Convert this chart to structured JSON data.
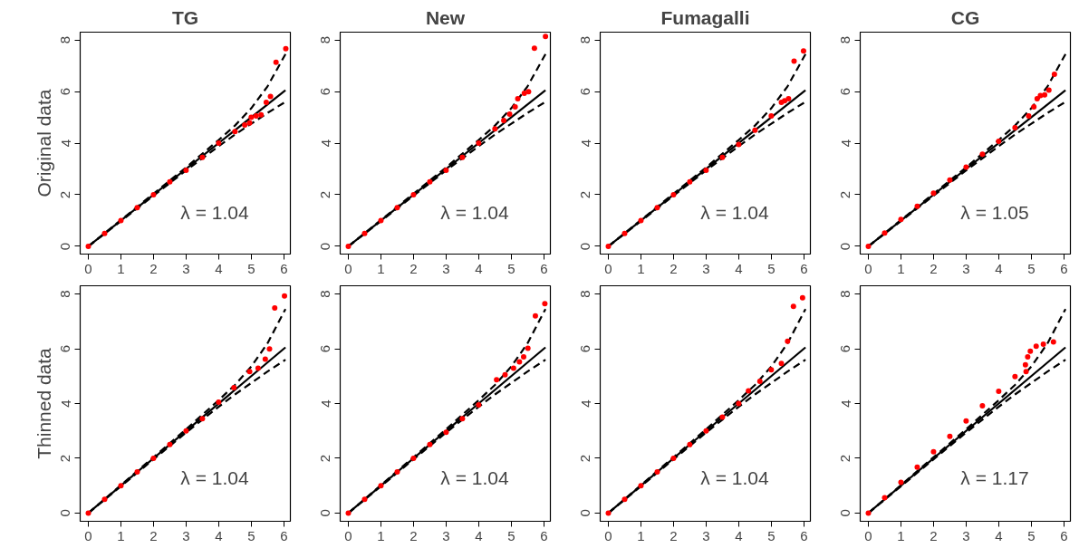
{
  "chart_data": [
    {
      "type": "scatter",
      "title": "TG",
      "ylabel": "Original data",
      "xlim": [
        -0.25,
        6.2
      ],
      "ylim": [
        -0.3,
        8.3
      ],
      "xticks": [
        0,
        1,
        2,
        3,
        4,
        5,
        6
      ],
      "yticks": [
        0,
        2,
        4,
        6,
        8
      ],
      "grid": false,
      "annotations": [
        "λ = 1.04"
      ],
      "series": [
        {
          "marker": "circle",
          "color": "#ff0000",
          "x": [
            0,
            0.5,
            1,
            1.5,
            2,
            2.5,
            3,
            3.5,
            4,
            4.5,
            4.8,
            4.95,
            5.0,
            5.15,
            5.3,
            5.46,
            5.59,
            5.76,
            6.06
          ],
          "values": [
            0,
            0.5,
            1,
            1.5,
            2,
            2.5,
            2.95,
            3.45,
            4.0,
            4.45,
            4.7,
            4.78,
            5.0,
            5.05,
            5.1,
            5.58,
            5.81,
            7.13,
            7.66
          ]
        },
        {
          "type": "line",
          "color": "#000000",
          "line_style": "solid",
          "x": [
            0,
            6.05
          ],
          "values": [
            0,
            6.05
          ]
        },
        {
          "type": "line",
          "color": "#000000",
          "line_style": "dashed",
          "x": [
            0,
            1,
            2,
            3,
            4,
            4.5,
            5,
            5.5,
            6.05
          ],
          "values": [
            0,
            1.02,
            2.04,
            3.06,
            4.12,
            4.68,
            5.35,
            6.2,
            7.45
          ]
        },
        {
          "type": "line",
          "color": "#000000",
          "line_style": "dashed",
          "x": [
            0,
            1,
            2,
            3,
            4,
            4.5,
            5,
            5.5,
            6.05
          ],
          "values": [
            0,
            0.98,
            1.96,
            2.94,
            3.88,
            4.33,
            4.75,
            5.17,
            5.6
          ]
        }
      ]
    },
    {
      "type": "scatter",
      "title": "New",
      "xlim": [
        -0.25,
        6.2
      ],
      "ylim": [
        -0.3,
        8.3
      ],
      "xticks": [
        0,
        1,
        2,
        3,
        4,
        5,
        6
      ],
      "yticks": [
        0,
        2,
        4,
        6,
        8
      ],
      "grid": false,
      "annotations": [
        "λ = 1.04"
      ],
      "series": [
        {
          "marker": "circle",
          "color": "#ff0000",
          "x": [
            0,
            0.5,
            1,
            1.5,
            2,
            2.5,
            3,
            3.5,
            4,
            4.5,
            4.77,
            4.95,
            5.12,
            5.2,
            5.4,
            5.53,
            5.71,
            6.05
          ],
          "values": [
            0,
            0.5,
            1,
            1.5,
            2,
            2.5,
            2.95,
            3.45,
            4.0,
            4.55,
            4.88,
            5.12,
            5.4,
            5.72,
            5.93,
            5.99,
            7.68,
            8.13
          ]
        },
        {
          "type": "line",
          "color": "#000000",
          "line_style": "solid",
          "x": [
            0,
            6.05
          ],
          "values": [
            0,
            6.05
          ]
        },
        {
          "type": "line",
          "color": "#000000",
          "line_style": "dashed",
          "x": [
            0,
            1,
            2,
            3,
            4,
            4.5,
            5,
            5.5,
            6.05
          ],
          "values": [
            0,
            1.02,
            2.04,
            3.06,
            4.12,
            4.68,
            5.35,
            6.2,
            7.45
          ]
        },
        {
          "type": "line",
          "color": "#000000",
          "line_style": "dashed",
          "x": [
            0,
            1,
            2,
            3,
            4,
            4.5,
            5,
            5.5,
            6.05
          ],
          "values": [
            0,
            0.98,
            1.96,
            2.94,
            3.88,
            4.33,
            4.75,
            5.17,
            5.6
          ]
        }
      ]
    },
    {
      "type": "scatter",
      "title": "Fumagalli",
      "xlim": [
        -0.25,
        6.2
      ],
      "ylim": [
        -0.3,
        8.3
      ],
      "xticks": [
        0,
        1,
        2,
        3,
        4,
        5,
        6
      ],
      "yticks": [
        0,
        2,
        4,
        6,
        8
      ],
      "grid": false,
      "annotations": [
        "λ = 1.04"
      ],
      "series": [
        {
          "marker": "circle",
          "color": "#ff0000",
          "x": [
            0,
            0.5,
            1,
            1.5,
            2,
            2.5,
            3,
            3.5,
            4,
            4.5,
            5.0,
            5.31,
            5.41,
            5.53,
            5.7,
            5.99
          ],
          "values": [
            0,
            0.5,
            1,
            1.5,
            2,
            2.5,
            2.95,
            3.45,
            3.95,
            4.5,
            5.05,
            5.58,
            5.64,
            5.72,
            7.18,
            7.57
          ]
        },
        {
          "type": "line",
          "color": "#000000",
          "line_style": "solid",
          "x": [
            0,
            6.05
          ],
          "values": [
            0,
            6.05
          ]
        },
        {
          "type": "line",
          "color": "#000000",
          "line_style": "dashed",
          "x": [
            0,
            1,
            2,
            3,
            4,
            4.5,
            5,
            5.5,
            6.05
          ],
          "values": [
            0,
            1.02,
            2.04,
            3.06,
            4.12,
            4.68,
            5.35,
            6.2,
            7.45
          ]
        },
        {
          "type": "line",
          "color": "#000000",
          "line_style": "dashed",
          "x": [
            0,
            1,
            2,
            3,
            4,
            4.5,
            5,
            5.5,
            6.05
          ],
          "values": [
            0,
            0.98,
            1.96,
            2.94,
            3.88,
            4.33,
            4.75,
            5.17,
            5.6
          ]
        }
      ]
    },
    {
      "type": "scatter",
      "title": "CG",
      "xlim": [
        -0.25,
        6.2
      ],
      "ylim": [
        -0.3,
        8.3
      ],
      "xticks": [
        0,
        1,
        2,
        3,
        4,
        5,
        6
      ],
      "yticks": [
        0,
        2,
        4,
        6,
        8
      ],
      "grid": false,
      "annotations": [
        "λ = 1.05"
      ],
      "series": [
        {
          "marker": "circle",
          "color": "#ff0000",
          "x": [
            0,
            0.5,
            1,
            1.5,
            2,
            2.5,
            3,
            3.5,
            4,
            4.5,
            4.92,
            5.08,
            5.18,
            5.28,
            5.41,
            5.54,
            5.71
          ],
          "values": [
            0,
            0.52,
            1.04,
            1.55,
            2.06,
            2.57,
            3.07,
            3.57,
            4.07,
            4.6,
            5.05,
            5.4,
            5.72,
            5.84,
            5.87,
            6.05,
            6.67
          ]
        },
        {
          "type": "line",
          "color": "#000000",
          "line_style": "solid",
          "x": [
            0,
            6.05
          ],
          "values": [
            0,
            6.05
          ]
        },
        {
          "type": "line",
          "color": "#000000",
          "line_style": "dashed",
          "x": [
            0,
            1,
            2,
            3,
            4,
            4.5,
            5,
            5.5,
            6.05
          ],
          "values": [
            0,
            1.02,
            2.04,
            3.06,
            4.12,
            4.68,
            5.35,
            6.2,
            7.45
          ]
        },
        {
          "type": "line",
          "color": "#000000",
          "line_style": "dashed",
          "x": [
            0,
            1,
            2,
            3,
            4,
            4.5,
            5,
            5.5,
            6.05
          ],
          "values": [
            0,
            0.98,
            1.96,
            2.94,
            3.88,
            4.33,
            4.75,
            5.17,
            5.6
          ]
        }
      ]
    },
    {
      "type": "scatter",
      "ylabel": "Thinned data",
      "xlim": [
        -0.25,
        6.2
      ],
      "ylim": [
        -0.3,
        8.3
      ],
      "xticks": [
        0,
        1,
        2,
        3,
        4,
        5,
        6
      ],
      "yticks": [
        0,
        2,
        4,
        6,
        8
      ],
      "grid": false,
      "annotations": [
        "λ = 1.04"
      ],
      "series": [
        {
          "marker": "circle",
          "color": "#ff0000",
          "x": [
            0,
            0.5,
            1,
            1.5,
            2,
            2.5,
            3,
            3.5,
            4,
            4.47,
            4.95,
            5.21,
            5.43,
            5.56,
            5.72,
            6.02
          ],
          "values": [
            0,
            0.5,
            1,
            1.5,
            2,
            2.5,
            3.0,
            3.45,
            4.05,
            4.58,
            5.17,
            5.29,
            5.62,
            5.99,
            7.49,
            7.93
          ]
        },
        {
          "type": "line",
          "color": "#000000",
          "line_style": "solid",
          "x": [
            0,
            6.05
          ],
          "values": [
            0,
            6.05
          ]
        },
        {
          "type": "line",
          "color": "#000000",
          "line_style": "dashed",
          "x": [
            0,
            1,
            2,
            3,
            4,
            4.5,
            5,
            5.5,
            6.05
          ],
          "values": [
            0,
            1.02,
            2.04,
            3.06,
            4.12,
            4.68,
            5.35,
            6.2,
            7.45
          ]
        },
        {
          "type": "line",
          "color": "#000000",
          "line_style": "dashed",
          "x": [
            0,
            1,
            2,
            3,
            4,
            4.5,
            5,
            5.5,
            6.05
          ],
          "values": [
            0,
            0.98,
            1.96,
            2.94,
            3.88,
            4.33,
            4.75,
            5.17,
            5.6
          ]
        }
      ]
    },
    {
      "type": "scatter",
      "xlim": [
        -0.25,
        6.2
      ],
      "ylim": [
        -0.3,
        8.3
      ],
      "xticks": [
        0,
        1,
        2,
        3,
        4,
        5,
        6
      ],
      "yticks": [
        0,
        2,
        4,
        6,
        8
      ],
      "grid": false,
      "annotations": [
        "λ = 1.04"
      ],
      "series": [
        {
          "marker": "circle",
          "color": "#ff0000",
          "x": [
            0,
            0.5,
            1,
            1.5,
            2,
            2.5,
            3,
            3.5,
            4,
            4.55,
            4.81,
            5.07,
            5.25,
            5.38,
            5.51,
            5.74,
            6.03
          ],
          "values": [
            0,
            0.5,
            1,
            1.5,
            2,
            2.5,
            2.95,
            3.45,
            3.95,
            4.87,
            5.05,
            5.29,
            5.52,
            5.7,
            6.02,
            7.2,
            7.65
          ]
        },
        {
          "type": "line",
          "color": "#000000",
          "line_style": "solid",
          "x": [
            0,
            6.05
          ],
          "values": [
            0,
            6.05
          ]
        },
        {
          "type": "line",
          "color": "#000000",
          "line_style": "dashed",
          "x": [
            0,
            1,
            2,
            3,
            4,
            4.5,
            5,
            5.5,
            6.05
          ],
          "values": [
            0,
            1.02,
            2.04,
            3.06,
            4.12,
            4.68,
            5.35,
            6.2,
            7.45
          ]
        },
        {
          "type": "line",
          "color": "#000000",
          "line_style": "dashed",
          "x": [
            0,
            1,
            2,
            3,
            4,
            4.5,
            5,
            5.5,
            6.05
          ],
          "values": [
            0,
            0.98,
            1.96,
            2.94,
            3.88,
            4.33,
            4.75,
            5.17,
            5.6
          ]
        }
      ]
    },
    {
      "type": "scatter",
      "xlim": [
        -0.25,
        6.2
      ],
      "ylim": [
        -0.3,
        8.3
      ],
      "xticks": [
        0,
        1,
        2,
        3,
        4,
        5,
        6
      ],
      "yticks": [
        0,
        2,
        4,
        6,
        8
      ],
      "grid": false,
      "annotations": [
        "λ = 1.04"
      ],
      "series": [
        {
          "marker": "circle",
          "color": "#ff0000",
          "x": [
            0,
            0.5,
            1,
            1.5,
            2,
            2.5,
            3,
            3.5,
            4,
            4.3,
            4.65,
            5.0,
            5.31,
            5.5,
            5.68,
            5.96
          ],
          "values": [
            0,
            0.5,
            1,
            1.5,
            2,
            2.5,
            3.0,
            3.5,
            4.0,
            4.46,
            4.81,
            5.23,
            5.46,
            6.27,
            7.55,
            7.86
          ]
        },
        {
          "type": "line",
          "color": "#000000",
          "line_style": "solid",
          "x": [
            0,
            6.05
          ],
          "values": [
            0,
            6.05
          ]
        },
        {
          "type": "line",
          "color": "#000000",
          "line_style": "dashed",
          "x": [
            0,
            1,
            2,
            3,
            4,
            4.5,
            5,
            5.5,
            6.05
          ],
          "values": [
            0,
            1.02,
            2.04,
            3.06,
            4.12,
            4.68,
            5.35,
            6.2,
            7.45
          ]
        },
        {
          "type": "line",
          "color": "#000000",
          "line_style": "dashed",
          "x": [
            0,
            1,
            2,
            3,
            4,
            4.5,
            5,
            5.5,
            6.05
          ],
          "values": [
            0,
            0.98,
            1.96,
            2.94,
            3.88,
            4.33,
            4.75,
            5.17,
            5.6
          ]
        }
      ]
    },
    {
      "type": "scatter",
      "xlim": [
        -0.25,
        6.2
      ],
      "ylim": [
        -0.3,
        8.3
      ],
      "xticks": [
        0,
        1,
        2,
        3,
        4,
        5,
        6
      ],
      "yticks": [
        0,
        2,
        4,
        6,
        8
      ],
      "grid": false,
      "annotations": [
        "λ = 1.17"
      ],
      "series": [
        {
          "marker": "circle",
          "color": "#ff0000",
          "x": [
            0,
            0.5,
            1,
            1.5,
            2,
            2.5,
            3,
            3.5,
            4,
            4.5,
            4.84,
            4.82,
            4.89,
            4.97,
            5.15,
            5.37,
            5.68
          ],
          "values": [
            0,
            0.56,
            1.12,
            1.68,
            2.24,
            2.8,
            3.36,
            3.92,
            4.45,
            4.98,
            5.17,
            5.41,
            5.7,
            5.91,
            6.09,
            6.17,
            6.25
          ]
        },
        {
          "type": "line",
          "color": "#000000",
          "line_style": "solid",
          "x": [
            0,
            6.05
          ],
          "values": [
            0,
            6.05
          ]
        },
        {
          "type": "line",
          "color": "#000000",
          "line_style": "dashed",
          "x": [
            0,
            1,
            2,
            3,
            4,
            4.5,
            5,
            5.5,
            6.05
          ],
          "values": [
            0,
            1.02,
            2.04,
            3.06,
            4.12,
            4.68,
            5.35,
            6.2,
            7.45
          ]
        },
        {
          "type": "line",
          "color": "#000000",
          "line_style": "dashed",
          "x": [
            0,
            1,
            2,
            3,
            4,
            4.5,
            5,
            5.5,
            6.05
          ],
          "values": [
            0,
            0.98,
            1.96,
            2.94,
            3.88,
            4.33,
            4.75,
            5.17,
            5.6
          ]
        }
      ]
    }
  ]
}
